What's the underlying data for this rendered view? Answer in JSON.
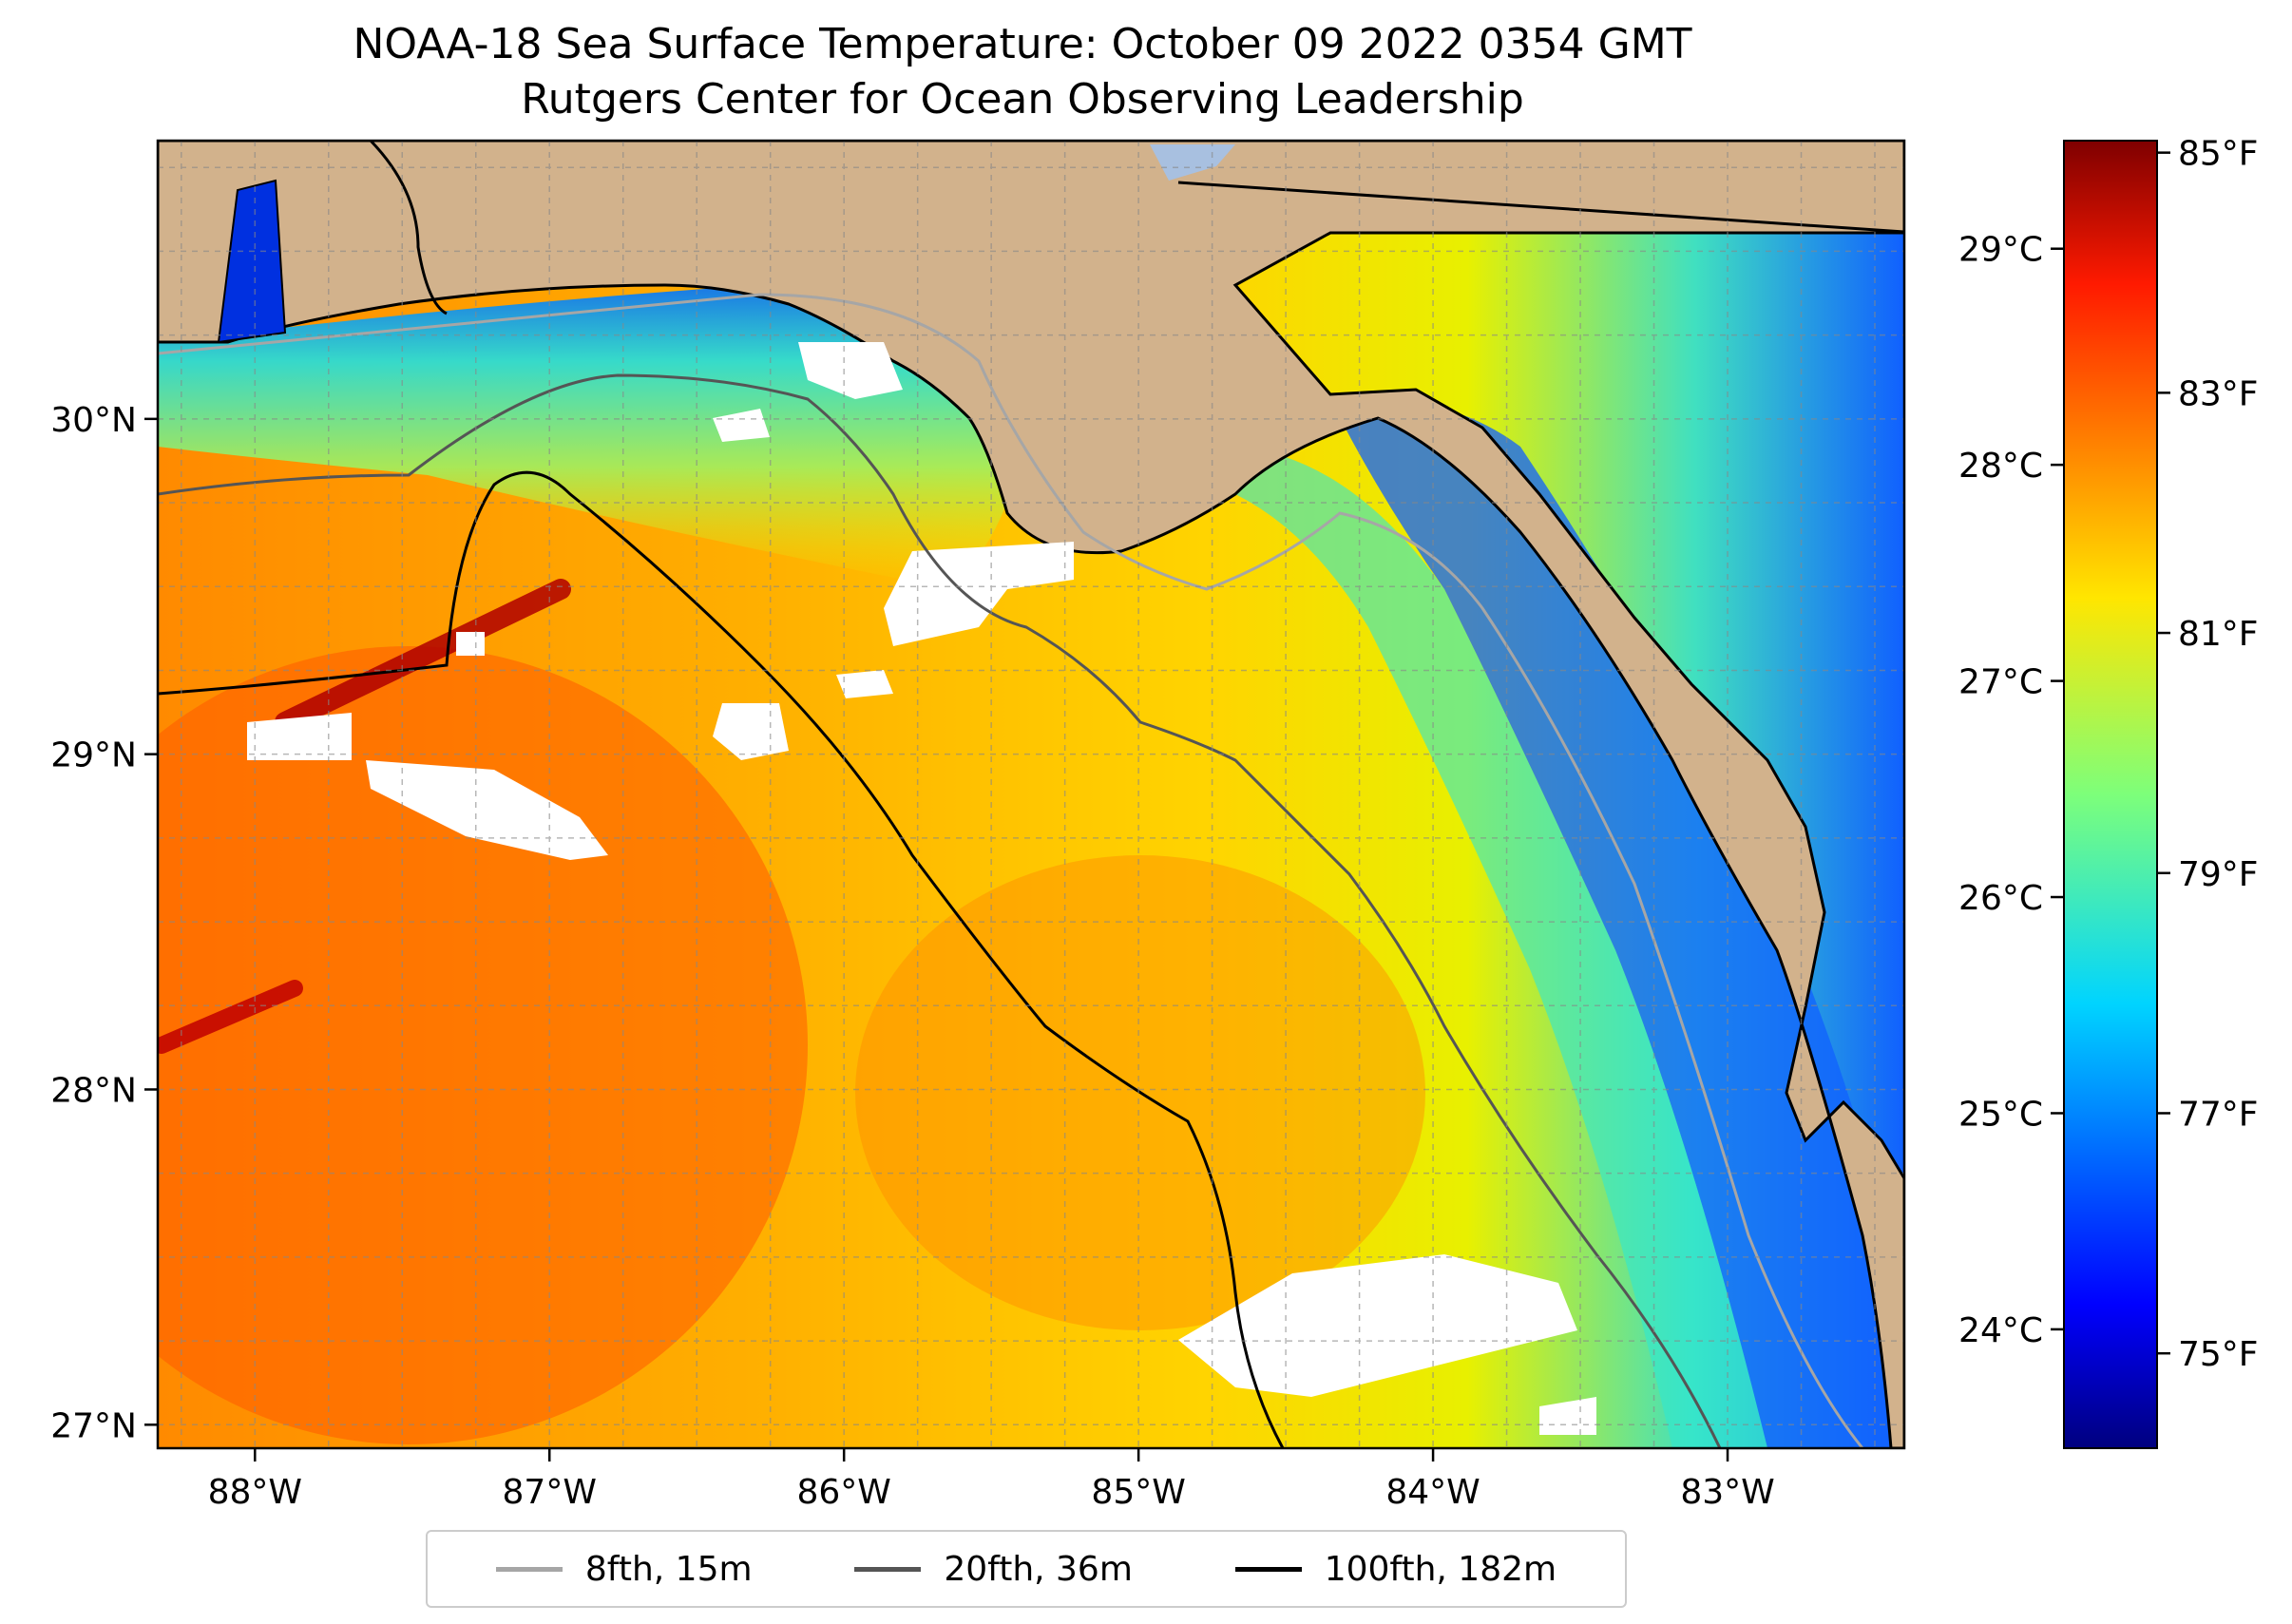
{
  "title": "NOAA-18 Sea Surface Temperature: October 09 2022 0354 GMT",
  "subtitle": "Rutgers Center for Ocean Observing Leadership",
  "map": {
    "lon_range": [
      -88.33,
      -82.4
    ],
    "lat_range": [
      26.93,
      30.83
    ],
    "lon_ticks": [
      -88,
      -87,
      -86,
      -85,
      -84,
      -83
    ],
    "lon_tick_labels": [
      "88°W",
      "87°W",
      "86°W",
      "85°W",
      "84°W",
      "83°W"
    ],
    "lat_ticks": [
      27,
      28,
      29,
      30
    ],
    "lat_tick_labels": [
      "27°N",
      "28°N",
      "29°N",
      "30°N"
    ],
    "gridlines": true,
    "land_color": "#d2b28c",
    "cloud_color": "#ffffff"
  },
  "colorbar": {
    "colormap": "jet",
    "range_c": [
      23.45,
      29.5
    ],
    "celsius_ticks": [
      24,
      25,
      26,
      27,
      28,
      29
    ],
    "celsius_labels": [
      "24°C",
      "25°C",
      "26°C",
      "27°C",
      "28°C",
      "29°C"
    ],
    "fahrenheit_ticks": [
      75,
      77,
      79,
      81,
      83,
      85
    ],
    "fahrenheit_labels": [
      "75°F",
      "77°F",
      "79°F",
      "81°F",
      "83°F",
      "85°F"
    ]
  },
  "legend": {
    "items": [
      {
        "label": "8fth, 15m",
        "color": "#a6a6a6"
      },
      {
        "label": "20fth, 36m",
        "color": "#555555"
      },
      {
        "label": "100fth, 182m",
        "color": "#000000"
      }
    ]
  }
}
